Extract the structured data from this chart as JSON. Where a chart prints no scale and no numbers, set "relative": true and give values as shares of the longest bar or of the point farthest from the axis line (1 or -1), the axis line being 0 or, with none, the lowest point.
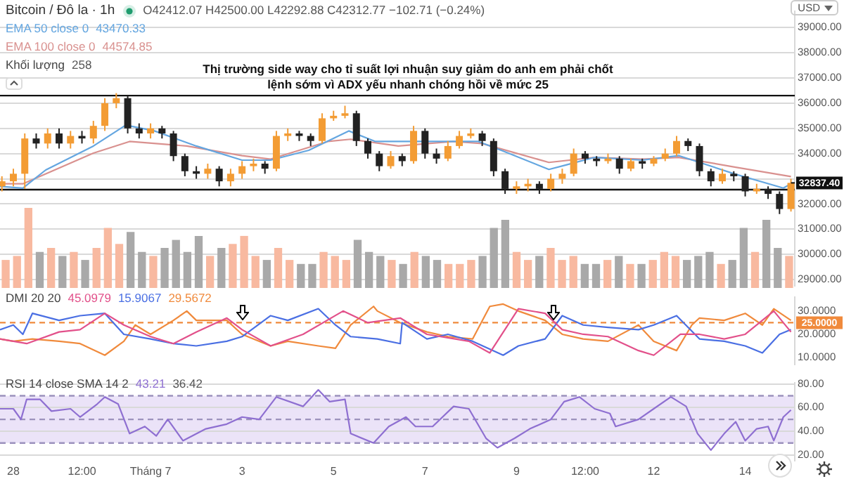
{
  "chart_data": [
    {
      "type": "candlestick",
      "subtitle": "Bitcoin / Đô la · 1h",
      "title": "Thị trường side way cho tỉ suất lợi nhuận suy giảm do anh em phải chốt lệnh sớm vì ADX yếu nhanh chóng hồi về mức 25",
      "ylabel": "USD",
      "annotations": [
        "O42412.07 H42500.00 L42292.88 C42312.77 −102.71 (−0.24%)",
        "43470.33",
        "44574.85",
        {
          "text": "32837.40",
          "x": "--07-15T00:00",
          "y": 32837.4
        }
      ],
      "x": [
        "--06-27T18:00",
        "--06-28T00:00",
        "--06-28T06:00",
        "--06-28T12:00",
        "--06-28T18:00",
        "--06-29T00:00",
        "--06-29T06:00",
        "--06-29T12:00",
        "--06-29T18:00",
        "--06-30T00:00",
        "--06-30T06:00",
        "--06-30T12:00",
        "--06-30T18:00",
        "--07-01T00:00",
        "--07-01T06:00",
        "--07-01T12:00",
        "--07-01T18:00",
        "--07-02T00:00",
        "--07-02T06:00",
        "--07-02T12:00",
        "--07-02T18:00",
        "--07-03T00:00",
        "--07-03T06:00",
        "--07-03T12:00",
        "--07-03T18:00",
        "--07-04T00:00",
        "--07-04T06:00",
        "--07-04T12:00",
        "--07-04T18:00",
        "--07-05T00:00",
        "--07-05T06:00",
        "--07-05T12:00",
        "--07-05T18:00",
        "--07-06T00:00",
        "--07-06T06:00",
        "--07-06T12:00",
        "--07-06T18:00",
        "--07-07T00:00",
        "--07-07T06:00",
        "--07-07T12:00",
        "--07-07T18:00",
        "--07-08T00:00",
        "--07-08T06:00",
        "--07-08T12:00",
        "--07-08T18:00",
        "--07-09T00:00",
        "--07-09T06:00",
        "--07-09T12:00",
        "--07-09T18:00",
        "--07-10T00:00",
        "--07-10T06:00",
        "--07-10T12:00",
        "--07-10T18:00",
        "--07-11T00:00",
        "--07-11T06:00",
        "--07-11T12:00",
        "--07-11T18:00",
        "--07-12T00:00",
        "--07-12T06:00",
        "--07-12T12:00",
        "--07-12T18:00",
        "--07-13T00:00",
        "--07-13T06:00",
        "--07-13T12:00",
        "--07-13T18:00",
        "--07-14T00:00",
        "--07-14T06:00",
        "--07-14T12:00",
        "--07-14T18:00",
        "--07-15T00:00"
      ],
      "ohlc": [
        [
          32700,
          33100,
          32500,
          32900
        ],
        [
          32900,
          33400,
          32700,
          33200
        ],
        [
          33200,
          34800,
          32600,
          34600
        ],
        [
          34600,
          34800,
          34200,
          34400
        ],
        [
          34400,
          35000,
          34200,
          34800
        ],
        [
          34800,
          35000,
          34200,
          34400
        ],
        [
          34400,
          34900,
          34200,
          34700
        ],
        [
          34700,
          34900,
          34400,
          34600
        ],
        [
          34600,
          35300,
          34400,
          35100
        ],
        [
          35100,
          36200,
          34900,
          36000
        ],
        [
          36000,
          36400,
          35800,
          36200
        ],
        [
          36200,
          36300,
          34800,
          35000
        ],
        [
          35000,
          35200,
          34600,
          34800
        ],
        [
          34800,
          35200,
          34600,
          35000
        ],
        [
          35000,
          35100,
          34600,
          34800
        ],
        [
          34800,
          34900,
          33700,
          33900
        ],
        [
          33900,
          34000,
          33100,
          33300
        ],
        [
          33300,
          33500,
          33000,
          33200
        ],
        [
          33200,
          33600,
          33000,
          33400
        ],
        [
          33400,
          33500,
          32700,
          32900
        ],
        [
          32900,
          33400,
          32700,
          33200
        ],
        [
          33200,
          33700,
          33000,
          33500
        ],
        [
          33500,
          33800,
          33300,
          33600
        ],
        [
          33600,
          33700,
          33200,
          33400
        ],
        [
          33400,
          34900,
          33300,
          34700
        ],
        [
          34700,
          35000,
          34500,
          34800
        ],
        [
          34800,
          34900,
          34500,
          34700
        ],
        [
          34700,
          34800,
          34300,
          34500
        ],
        [
          34500,
          35600,
          34400,
          35400
        ],
        [
          35400,
          35700,
          35300,
          35500
        ],
        [
          35500,
          35900,
          35400,
          35600
        ],
        [
          35600,
          35700,
          34300,
          34500
        ],
        [
          34500,
          34600,
          33800,
          34000
        ],
        [
          34000,
          34100,
          33300,
          33500
        ],
        [
          33500,
          34100,
          33400,
          33900
        ],
        [
          33900,
          34000,
          33500,
          33700
        ],
        [
          33700,
          35100,
          33600,
          34900
        ],
        [
          34900,
          35000,
          33800,
          34000
        ],
        [
          34000,
          34200,
          33600,
          33800
        ],
        [
          33800,
          34500,
          33700,
          34300
        ],
        [
          34300,
          34900,
          34200,
          34700
        ],
        [
          34700,
          35000,
          34600,
          34800
        ],
        [
          34800,
          34900,
          34300,
          34500
        ],
        [
          34500,
          34600,
          33100,
          33300
        ],
        [
          33300,
          33400,
          32400,
          32600
        ],
        [
          32600,
          32900,
          32400,
          32700
        ],
        [
          32700,
          33000,
          32500,
          32800
        ],
        [
          32800,
          32900,
          32400,
          32600
        ],
        [
          32600,
          33200,
          32500,
          33000
        ],
        [
          33000,
          33400,
          32800,
          33200
        ],
        [
          33200,
          34200,
          33100,
          34000
        ],
        [
          34000,
          34100,
          33600,
          33800
        ],
        [
          33800,
          33900,
          33500,
          33700
        ],
        [
          33700,
          34000,
          33600,
          33800
        ],
        [
          33800,
          33900,
          33200,
          33400
        ],
        [
          33400,
          33800,
          33300,
          33700
        ],
        [
          33700,
          33800,
          33400,
          33600
        ],
        [
          33600,
          33900,
          33500,
          33800
        ],
        [
          33800,
          34200,
          33700,
          34000
        ],
        [
          34000,
          34700,
          33900,
          34500
        ],
        [
          34500,
          34600,
          34100,
          34300
        ],
        [
          34300,
          34400,
          33100,
          33300
        ],
        [
          33300,
          33400,
          32700,
          32900
        ],
        [
          32900,
          33400,
          32800,
          33200
        ],
        [
          33200,
          33300,
          32900,
          33100
        ],
        [
          33100,
          33200,
          32300,
          32500
        ],
        [
          32500,
          32800,
          32400,
          32600
        ],
        [
          32600,
          32700,
          32200,
          32400
        ],
        [
          32400,
          32500,
          31600,
          31800
        ],
        [
          31800,
          33000,
          31700,
          32837.4
        ]
      ],
      "colors": [
        "#f39c34",
        "#f39c34",
        "#f39c34",
        "#222222",
        "#f39c34",
        "#222222",
        "#f39c34",
        "#222222",
        "#f39c34",
        "#f39c34",
        "#f39c34",
        "#222222",
        "#222222",
        "#f39c34",
        "#222222",
        "#222222",
        "#222222",
        "#222222",
        "#f39c34",
        "#222222",
        "#f39c34",
        "#f39c34",
        "#f39c34",
        "#222222",
        "#f39c34",
        "#f39c34",
        "#222222",
        "#222222",
        "#f39c34",
        "#f39c34",
        "#f39c34",
        "#222222",
        "#222222",
        "#222222",
        "#f39c34",
        "#222222",
        "#f39c34",
        "#222222",
        "#222222",
        "#f39c34",
        "#f39c34",
        "#f39c34",
        "#222222",
        "#222222",
        "#222222",
        "#f39c34",
        "#f39c34",
        "#222222",
        "#f39c34",
        "#f39c34",
        "#f39c34",
        "#222222",
        "#222222",
        "#f39c34",
        "#222222",
        "#f39c34",
        "#222222",
        "#f39c34",
        "#f39c34",
        "#f39c34",
        "#222222",
        "#222222",
        "#222222",
        "#f39c34",
        "#222222",
        "#222222",
        "#f39c34",
        "#222222",
        "#222222",
        "#f39c34"
      ],
      "series": [
        {
          "name": "EMA 50 close 0",
          "type": "line",
          "color": "#64a6e0",
          "x": [
            "--06-27T17:00",
            "--06-28T05:00",
            "--06-28T17:00",
            "--06-29T18:00",
            "--06-30T11:00",
            "--07-01T02:00",
            "--07-02T00:00",
            "--07-03T00:00",
            "--07-03T15:00",
            "--07-04T11:00",
            "--07-05T08:00",
            "--07-05T22:00",
            "--07-07T00:00",
            "--07-08T04:00",
            "--07-08T16:00",
            "--07-09T17:00",
            "--07-10T02:00",
            "--07-10T17:00",
            "--07-11T18:00",
            "--07-12T13:00",
            "--07-13T04:00",
            "--07-13T19:00",
            "--07-14T20:00",
            "--07-15T00:00"
          ],
          "values": [
            32700,
            32630,
            33350,
            34300,
            35130,
            34900,
            34300,
            33740,
            33740,
            34130,
            34900,
            34480,
            34480,
            34480,
            34130,
            33370,
            33550,
            33850,
            33740,
            33920,
            33550,
            33180,
            32630,
            32800
          ]
        },
        {
          "name": "EMA 100 close 0",
          "type": "line",
          "color": "#d9918f",
          "x": [
            "--06-27T17:00",
            "--06-28T05:00",
            "--06-29T18:00",
            "--06-30T13:00",
            "--07-01T19:00",
            "--07-03T00:00",
            "--07-03T15:00",
            "--07-04T21:00",
            "--07-05T09:00",
            "--07-06T10:00",
            "--07-07T15:00",
            "--07-08T06:00",
            "--07-09T17:00",
            "--07-10T17:00",
            "--07-11T18:00",
            "--07-12T13:00",
            "--07-13T19:00",
            "--07-15T00:00"
          ],
          "values": [
            32800,
            32800,
            34020,
            34480,
            34300,
            33920,
            33780,
            34480,
            34570,
            34300,
            34480,
            34400,
            33650,
            33850,
            33780,
            33850,
            33460,
            33090
          ]
        }
      ],
      "xlim": [
        "--06-27T17:00",
        "--07-15T02:00"
      ],
      "ylim": [
        28750,
        39650
      ],
      "yticks": [
        {
          "value": 29000,
          "label": "29000.00"
        },
        {
          "value": 30000,
          "label": "30000.00"
        },
        {
          "value": 31000,
          "label": "31000.00"
        },
        {
          "value": 32000,
          "label": "32000.00"
        },
        {
          "value": 33000,
          "label": null
        },
        {
          "value": 34000,
          "label": "34000.00"
        },
        {
          "value": 35000,
          "label": "35000.00"
        },
        {
          "value": 36000,
          "label": "36000.00"
        },
        {
          "value": 37000,
          "label": "37000.00"
        },
        {
          "value": 38000,
          "label": "38000.00"
        },
        {
          "value": 39000,
          "label": "39000.00"
        }
      ],
      "ref_lines": [
        {
          "axis": "y",
          "value": 36300,
          "color": "#111111"
        },
        {
          "axis": "y",
          "value": 32570,
          "color": "#111111"
        }
      ],
      "grid": "y",
      "legend": "top left",
      "tick_labels": "y"
    },
    {
      "type": "bar",
      "title": "Khối lượng",
      "annotations": [
        "258"
      ],
      "relative": true,
      "categories": [
        null,
        null,
        null,
        null,
        null,
        null,
        null,
        null,
        null,
        null,
        null,
        null,
        null,
        null,
        null,
        null,
        null,
        null,
        null,
        null,
        null,
        null,
        null,
        null,
        null,
        null,
        null,
        null,
        null,
        null,
        null,
        null,
        null,
        null,
        null,
        null,
        null,
        null,
        null,
        null,
        null,
        null,
        null,
        null,
        null,
        null,
        null,
        null,
        null,
        null,
        null,
        null,
        null,
        null,
        null,
        null,
        null,
        null,
        null,
        null,
        null,
        null,
        null,
        null,
        null,
        null,
        null,
        null,
        null,
        null
      ],
      "values": [
        0.35,
        0.4,
        1,
        0.45,
        0.5,
        0.4,
        0.45,
        0.35,
        0.5,
        0.75,
        0.55,
        0.7,
        0.45,
        0.4,
        0.5,
        0.6,
        0.45,
        0.65,
        0.4,
        0.5,
        0.55,
        0.65,
        0.4,
        0.35,
        0.5,
        0.35,
        0.3,
        0.3,
        0.45,
        0.4,
        0.35,
        0.6,
        0.45,
        0.4,
        0.35,
        0.3,
        0.45,
        0.4,
        0.35,
        0.3,
        0.3,
        0.35,
        0.4,
        0.75,
        0.85,
        0.45,
        0.35,
        0.4,
        0.5,
        0.35,
        0.4,
        0.3,
        0.3,
        0.35,
        0.4,
        0.3,
        0.3,
        0.35,
        0.45,
        0.4,
        0.35,
        0.4,
        0.45,
        0.3,
        0.35,
        0.75,
        0.45,
        0.85,
        0.5,
        0.4
      ],
      "colors": [
        "#f8b9a0",
        "#f8b9a0",
        "#f8b9a0",
        "#a9a9a9",
        "#f8b9a0",
        "#a9a9a9",
        "#f8b9a0",
        "#a9a9a9",
        "#f8b9a0",
        "#f8b9a0",
        "#f8b9a0",
        "#a9a9a9",
        "#a9a9a9",
        "#f8b9a0",
        "#a9a9a9",
        "#a9a9a9",
        "#a9a9a9",
        "#a9a9a9",
        "#f8b9a0",
        "#a9a9a9",
        "#f8b9a0",
        "#f8b9a0",
        "#f8b9a0",
        "#a9a9a9",
        "#f8b9a0",
        "#f8b9a0",
        "#a9a9a9",
        "#a9a9a9",
        "#f8b9a0",
        "#f8b9a0",
        "#f8b9a0",
        "#a9a9a9",
        "#a9a9a9",
        "#a9a9a9",
        "#f8b9a0",
        "#a9a9a9",
        "#f8b9a0",
        "#a9a9a9",
        "#a9a9a9",
        "#f8b9a0",
        "#f8b9a0",
        "#f8b9a0",
        "#a9a9a9",
        "#a9a9a9",
        "#a9a9a9",
        "#f8b9a0",
        "#f8b9a0",
        "#a9a9a9",
        "#f8b9a0",
        "#f8b9a0",
        "#f8b9a0",
        "#a9a9a9",
        "#a9a9a9",
        "#f8b9a0",
        "#a9a9a9",
        "#f8b9a0",
        "#a9a9a9",
        "#f8b9a0",
        "#f8b9a0",
        "#f8b9a0",
        "#a9a9a9",
        "#a9a9a9",
        "#a9a9a9",
        "#f8b9a0",
        "#a9a9a9",
        "#a9a9a9",
        "#f8b9a0",
        "#a9a9a9",
        "#a9a9a9",
        "#f8b9a0"
      ]
    },
    {
      "type": "line",
      "title": "DMI 20 20",
      "annotations": [
        "45.0979",
        "15.9067",
        "29.5672"
      ],
      "series": [
        {
          "color": "#e2508a",
          "x": [
            "--06-27T17:00",
            "--06-28T07:00",
            "--06-29T00:00",
            "--06-29T11:00",
            "--06-30T00:00",
            "--06-30T10:00",
            "--07-01T00:00",
            "--07-01T12:00",
            "--07-02T00:00",
            "--07-02T16:00",
            "--07-03T00:00",
            "--07-03T15:00",
            "--07-04T08:00",
            "--07-05T05:00",
            "--07-05T18:00",
            "--07-06T11:00",
            "--07-07T01:00",
            "--07-07T23:00",
            "--07-08T10:00",
            "--07-09T01:00",
            "--07-09T15:00",
            "--07-10T00:00",
            "--07-10T11:00",
            "--07-11T00:00",
            "--07-11T16:00",
            "--07-12T00:00",
            "--07-12T14:00",
            "--07-13T00:00",
            "--07-13T13:00",
            "--07-14T00:00",
            "--07-14T15:00",
            "--07-15T00:00"
          ],
          "values": [
            18,
            16,
            21,
            22,
            29,
            24,
            19,
            16,
            21,
            27,
            22,
            15,
            20,
            30,
            25,
            27,
            20,
            17,
            12,
            31,
            29,
            22,
            20,
            19,
            13,
            11,
            20,
            20,
            18,
            20,
            30,
            21
          ]
        },
        {
          "color": "#4a6fe3",
          "x": [
            "--06-27T17:00",
            "--06-28T00:00",
            "--06-28T05:00",
            "--06-28T10:00",
            "--06-29T00:00",
            "--06-29T11:00",
            "--06-30T00:00",
            "--06-30T10:00",
            "--07-01T00:00",
            "--07-01T12:00",
            "--07-02T00:00",
            "--07-02T16:00",
            "--07-03T00:00",
            "--07-03T15:00",
            "--07-04T00:00",
            "--07-04T16:00",
            "--07-05T01:00",
            "--07-05T09:00",
            "--07-05T23:00",
            "--07-06T11:00",
            "--07-06T12:00",
            "--07-07T01:00",
            "--07-07T12:00",
            "--07-08T01:00",
            "--07-08T17:00",
            "--07-09T01:00",
            "--07-09T15:00",
            "--07-10T00:00",
            "--07-10T11:00",
            "--07-11T00:00",
            "--07-11T16:00",
            "--07-12T00:00",
            "--07-12T12:00",
            "--07-13T00:00",
            "--07-13T13:00",
            "--07-14T00:00",
            "--07-14T09:00",
            "--07-14T18:00",
            "--07-15T00:00"
          ],
          "values": [
            22,
            24,
            20,
            29,
            26,
            28,
            29,
            20,
            18,
            16,
            15,
            17,
            19,
            28,
            26,
            31,
            24,
            19,
            18,
            16,
            25,
            18,
            20,
            17,
            11,
            15,
            18,
            28,
            24,
            23,
            22,
            24,
            28,
            18,
            17,
            15,
            12,
            20,
            22
          ]
        },
        {
          "color": "#f08a3c",
          "x": [
            "--06-27T17:00",
            "--06-28T00:00",
            "--06-28T10:00",
            "--06-29T00:00",
            "--06-29T11:00",
            "--06-30T00:00",
            "--06-30T10:00",
            "--06-30T16:00",
            "--07-01T00:00",
            "--07-01T12:00",
            "--07-01T19:00",
            "--07-02T00:00",
            "--07-02T16:00",
            "--07-03T00:00",
            "--07-03T15:00",
            "--07-04T00:00",
            "--07-04T16:00",
            "--07-05T01:00",
            "--07-05T09:00",
            "--07-05T21:00",
            "--07-05T23:00",
            "--07-06T11:00",
            "--07-07T01:00",
            "--07-07T12:00",
            "--07-08T01:00",
            "--07-08T10:00",
            "--07-08T17:00",
            "--07-09T01:00",
            "--07-09T15:00",
            "--07-10T00:00",
            "--07-10T11:00",
            "--07-11T00:00",
            "--07-11T16:00",
            "--07-12T00:00",
            "--07-12T12:00",
            "--07-12T20:00",
            "--07-13T00:00",
            "--07-13T13:00",
            "--07-14T00:00",
            "--07-14T09:00",
            "--07-14T15:00",
            "--07-15T00:00"
          ],
          "values": [
            18,
            17,
            18,
            17,
            16,
            11,
            17,
            24,
            20,
            26,
            30,
            26,
            26,
            20,
            15,
            17,
            15,
            14,
            24,
            32,
            30,
            25,
            21,
            19,
            18,
            32,
            33,
            30,
            26,
            20,
            18,
            17,
            24,
            17,
            13,
            24,
            27,
            26,
            29,
            24,
            31,
            26
          ]
        }
      ],
      "xlim": [
        "--06-27T17:00",
        "--07-15T02:00"
      ],
      "ylim": [
        7,
        36
      ],
      "yticks": [
        {
          "value": 10,
          "label": "10.0000"
        },
        {
          "value": 20,
          "label": "20.0000"
        },
        {
          "value": 30,
          "label": "30.0000"
        }
      ],
      "ref_lines": [
        {
          "axis": "y",
          "value": 25,
          "label": "25.0000",
          "color": "#f08a3c",
          "line_style": "dashed"
        }
      ],
      "tick_labels": "y"
    },
    {
      "type": "line",
      "title": "RSI 14 close SMA 14 2",
      "annotations": [
        "43.21",
        "36.42"
      ],
      "series": [
        {
          "color": "#8e6fd1",
          "x": [
            "--06-27T17:00",
            "--06-28T00:00",
            "--06-28T04:00",
            "--06-28T07:00",
            "--06-28T14:00",
            "--06-28T20:00",
            "--06-29T06:00",
            "--06-29T11:00",
            "--06-29T20:00",
            "--06-30T00:00",
            "--06-30T07:00",
            "--06-30T13:00",
            "--06-30T21:00",
            "--07-01T03:00",
            "--07-01T09:00",
            "--07-01T17:00",
            "--07-02T05:00",
            "--07-02T16:00",
            "--07-03T00:00",
            "--07-03T09:00",
            "--07-03T18:00",
            "--07-04T08:00",
            "--07-04T16:00",
            "--07-04T22:00",
            "--07-05T06:00",
            "--07-05T09:00",
            "--07-05T21:00",
            "--07-06T05:00",
            "--07-06T14:00",
            "--07-06T19:00",
            "--07-07T04:00",
            "--07-07T15:00",
            "--07-07T23:00",
            "--07-08T08:00",
            "--07-08T14:00",
            "--07-08T23:00",
            "--07-09T07:00",
            "--07-09T18:00",
            "--07-10T01:00",
            "--07-10T09:00",
            "--07-10T17:00",
            "--07-11T01:00",
            "--07-11T04:00",
            "--07-11T16:00",
            "--07-12T00:00",
            "--07-12T09:00",
            "--07-12T17:00",
            "--07-12T23:00",
            "--07-13T06:00",
            "--07-13T13:00",
            "--07-13T19:00",
            "--07-14T00:00",
            "--07-14T06:00",
            "--07-14T12:00",
            "--07-14T15:00",
            "--07-14T20:00",
            "--07-15T00:00"
          ],
          "values": [
            59,
            59,
            50,
            67,
            67,
            57,
            59,
            52,
            63,
            69,
            63,
            38,
            44,
            36,
            50,
            32,
            42,
            46,
            52,
            50,
            69,
            61,
            75,
            65,
            67,
            38,
            30,
            44,
            52,
            44,
            44,
            61,
            59,
            34,
            26,
            34,
            42,
            50,
            65,
            69,
            59,
            55,
            44,
            50,
            59,
            69,
            61,
            38,
            24,
            38,
            48,
            32,
            42,
            44,
            32,
            52,
            58
          ]
        }
      ],
      "xlim": [
        "--06-27T17:00",
        "--07-15T02:00"
      ],
      "ylim": [
        15,
        81
      ],
      "yticks": [
        {
          "value": 20,
          "label": "20.00"
        },
        {
          "value": 40,
          "label": "40.00"
        },
        {
          "value": 60,
          "label": "60.00"
        },
        {
          "value": 80,
          "label": "80.00"
        }
      ],
      "xticks": [
        {
          "value": "--06-28",
          "label": "28"
        },
        {
          "value": "--06-29T12:00",
          "label": "12:00"
        },
        {
          "value": "--07-01",
          "label": "Tháng 7"
        },
        {
          "value": "--07-03",
          "label": "3"
        },
        {
          "value": "--07-05",
          "label": "5"
        },
        {
          "value": "--07-07",
          "label": "7"
        },
        {
          "value": "--07-09",
          "label": "9"
        },
        {
          "value": "--07-10T12:00",
          "label": "12:00"
        },
        {
          "value": "--07-12",
          "label": "12"
        },
        {
          "value": "--07-14",
          "label": "14"
        }
      ],
      "grid": "y",
      "bands": [
        {
          "axis": "y",
          "from": 30,
          "to": 70,
          "color": "#ebe3f8"
        }
      ],
      "ref_lines": [
        {
          "axis": "y",
          "value": 30,
          "color": "#9c92bd",
          "line_style": "dashed"
        },
        {
          "axis": "y",
          "value": 50,
          "color": "#9c92bd",
          "line_style": "dashed"
        },
        {
          "axis": "y",
          "value": 70,
          "color": "#9c92bd",
          "line_style": "dashed"
        }
      ]
    }
  ]
}
